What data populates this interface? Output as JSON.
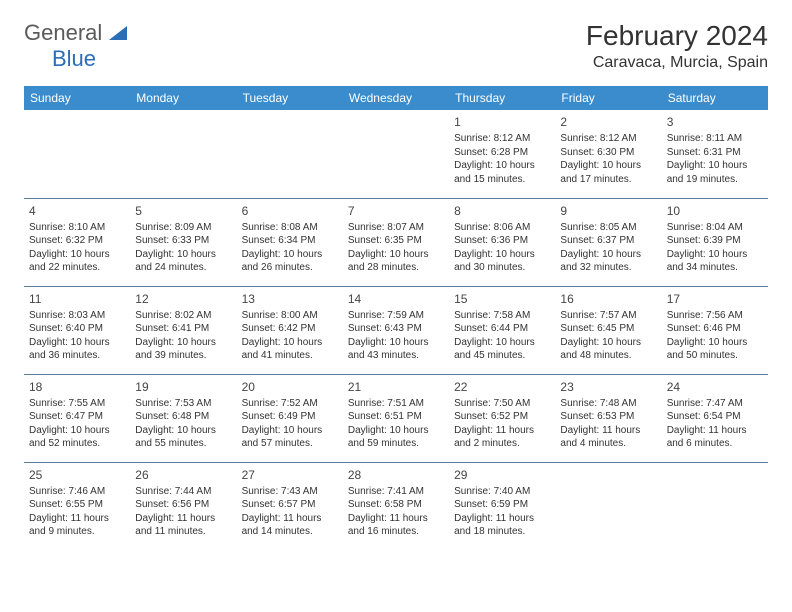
{
  "logo": {
    "line1": "General",
    "line2": "Blue"
  },
  "title": "February 2024",
  "location": "Caravaca, Murcia, Spain",
  "daynames": [
    "Sunday",
    "Monday",
    "Tuesday",
    "Wednesday",
    "Thursday",
    "Friday",
    "Saturday"
  ],
  "colors": {
    "header_bg": "#3b8ccc",
    "border": "#5a7a9a",
    "text": "#333333"
  },
  "typography": {
    "title_fontsize": 28,
    "location_fontsize": 16,
    "dayhead_fontsize": 12,
    "daynum_fontsize": 12,
    "cell_fontsize": 10
  },
  "grid": {
    "cols": 7,
    "rows": 5,
    "leading_blanks": 4,
    "days_in_month": 29
  },
  "days": {
    "1": {
      "sunrise": "8:12 AM",
      "sunset": "6:28 PM",
      "daylight": "10 hours and 15 minutes."
    },
    "2": {
      "sunrise": "8:12 AM",
      "sunset": "6:30 PM",
      "daylight": "10 hours and 17 minutes."
    },
    "3": {
      "sunrise": "8:11 AM",
      "sunset": "6:31 PM",
      "daylight": "10 hours and 19 minutes."
    },
    "4": {
      "sunrise": "8:10 AM",
      "sunset": "6:32 PM",
      "daylight": "10 hours and 22 minutes."
    },
    "5": {
      "sunrise": "8:09 AM",
      "sunset": "6:33 PM",
      "daylight": "10 hours and 24 minutes."
    },
    "6": {
      "sunrise": "8:08 AM",
      "sunset": "6:34 PM",
      "daylight": "10 hours and 26 minutes."
    },
    "7": {
      "sunrise": "8:07 AM",
      "sunset": "6:35 PM",
      "daylight": "10 hours and 28 minutes."
    },
    "8": {
      "sunrise": "8:06 AM",
      "sunset": "6:36 PM",
      "daylight": "10 hours and 30 minutes."
    },
    "9": {
      "sunrise": "8:05 AM",
      "sunset": "6:37 PM",
      "daylight": "10 hours and 32 minutes."
    },
    "10": {
      "sunrise": "8:04 AM",
      "sunset": "6:39 PM",
      "daylight": "10 hours and 34 minutes."
    },
    "11": {
      "sunrise": "8:03 AM",
      "sunset": "6:40 PM",
      "daylight": "10 hours and 36 minutes."
    },
    "12": {
      "sunrise": "8:02 AM",
      "sunset": "6:41 PM",
      "daylight": "10 hours and 39 minutes."
    },
    "13": {
      "sunrise": "8:00 AM",
      "sunset": "6:42 PM",
      "daylight": "10 hours and 41 minutes."
    },
    "14": {
      "sunrise": "7:59 AM",
      "sunset": "6:43 PM",
      "daylight": "10 hours and 43 minutes."
    },
    "15": {
      "sunrise": "7:58 AM",
      "sunset": "6:44 PM",
      "daylight": "10 hours and 45 minutes."
    },
    "16": {
      "sunrise": "7:57 AM",
      "sunset": "6:45 PM",
      "daylight": "10 hours and 48 minutes."
    },
    "17": {
      "sunrise": "7:56 AM",
      "sunset": "6:46 PM",
      "daylight": "10 hours and 50 minutes."
    },
    "18": {
      "sunrise": "7:55 AM",
      "sunset": "6:47 PM",
      "daylight": "10 hours and 52 minutes."
    },
    "19": {
      "sunrise": "7:53 AM",
      "sunset": "6:48 PM",
      "daylight": "10 hours and 55 minutes."
    },
    "20": {
      "sunrise": "7:52 AM",
      "sunset": "6:49 PM",
      "daylight": "10 hours and 57 minutes."
    },
    "21": {
      "sunrise": "7:51 AM",
      "sunset": "6:51 PM",
      "daylight": "10 hours and 59 minutes."
    },
    "22": {
      "sunrise": "7:50 AM",
      "sunset": "6:52 PM",
      "daylight": "11 hours and 2 minutes."
    },
    "23": {
      "sunrise": "7:48 AM",
      "sunset": "6:53 PM",
      "daylight": "11 hours and 4 minutes."
    },
    "24": {
      "sunrise": "7:47 AM",
      "sunset": "6:54 PM",
      "daylight": "11 hours and 6 minutes."
    },
    "25": {
      "sunrise": "7:46 AM",
      "sunset": "6:55 PM",
      "daylight": "11 hours and 9 minutes."
    },
    "26": {
      "sunrise": "7:44 AM",
      "sunset": "6:56 PM",
      "daylight": "11 hours and 11 minutes."
    },
    "27": {
      "sunrise": "7:43 AM",
      "sunset": "6:57 PM",
      "daylight": "11 hours and 14 minutes."
    },
    "28": {
      "sunrise": "7:41 AM",
      "sunset": "6:58 PM",
      "daylight": "11 hours and 16 minutes."
    },
    "29": {
      "sunrise": "7:40 AM",
      "sunset": "6:59 PM",
      "daylight": "11 hours and 18 minutes."
    }
  },
  "labels": {
    "sunrise": "Sunrise: ",
    "sunset": "Sunset: ",
    "daylight": "Daylight: "
  }
}
